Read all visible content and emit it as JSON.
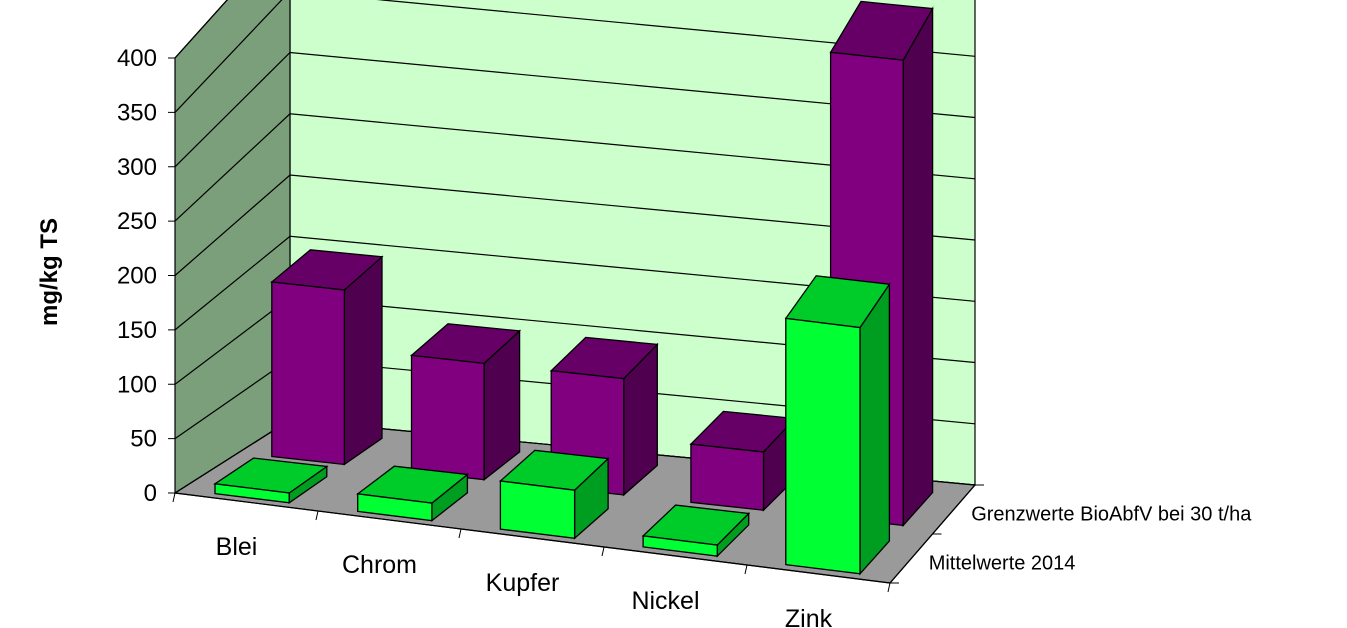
{
  "chart_data": {
    "type": "bar",
    "style": "3d-column",
    "title": "",
    "ylabel": "mg/kg TS",
    "xlabel": "",
    "ylim": [
      0,
      400
    ],
    "yticks": [
      "0",
      "50",
      "100",
      "150",
      "200",
      "250",
      "300",
      "350",
      "400"
    ],
    "categories": [
      "Blei",
      "Chrom",
      "Kupfer",
      "Nickel",
      "Zink"
    ],
    "series": [
      {
        "name": "Mittelwerte 2014",
        "values": [
          9,
          16,
          44,
          10,
          225
        ],
        "color": "#00ff33"
      },
      {
        "name": "Grenzwerte BioAbfV bei 30 t/ha",
        "values": [
          150,
          100,
          100,
          50,
          400
        ],
        "color": "#800080"
      }
    ],
    "colors": {
      "back_wall": "#ccffcc",
      "side_wall": "#7a9f7a",
      "floor": "#9a9a9a"
    },
    "grid": true
  }
}
